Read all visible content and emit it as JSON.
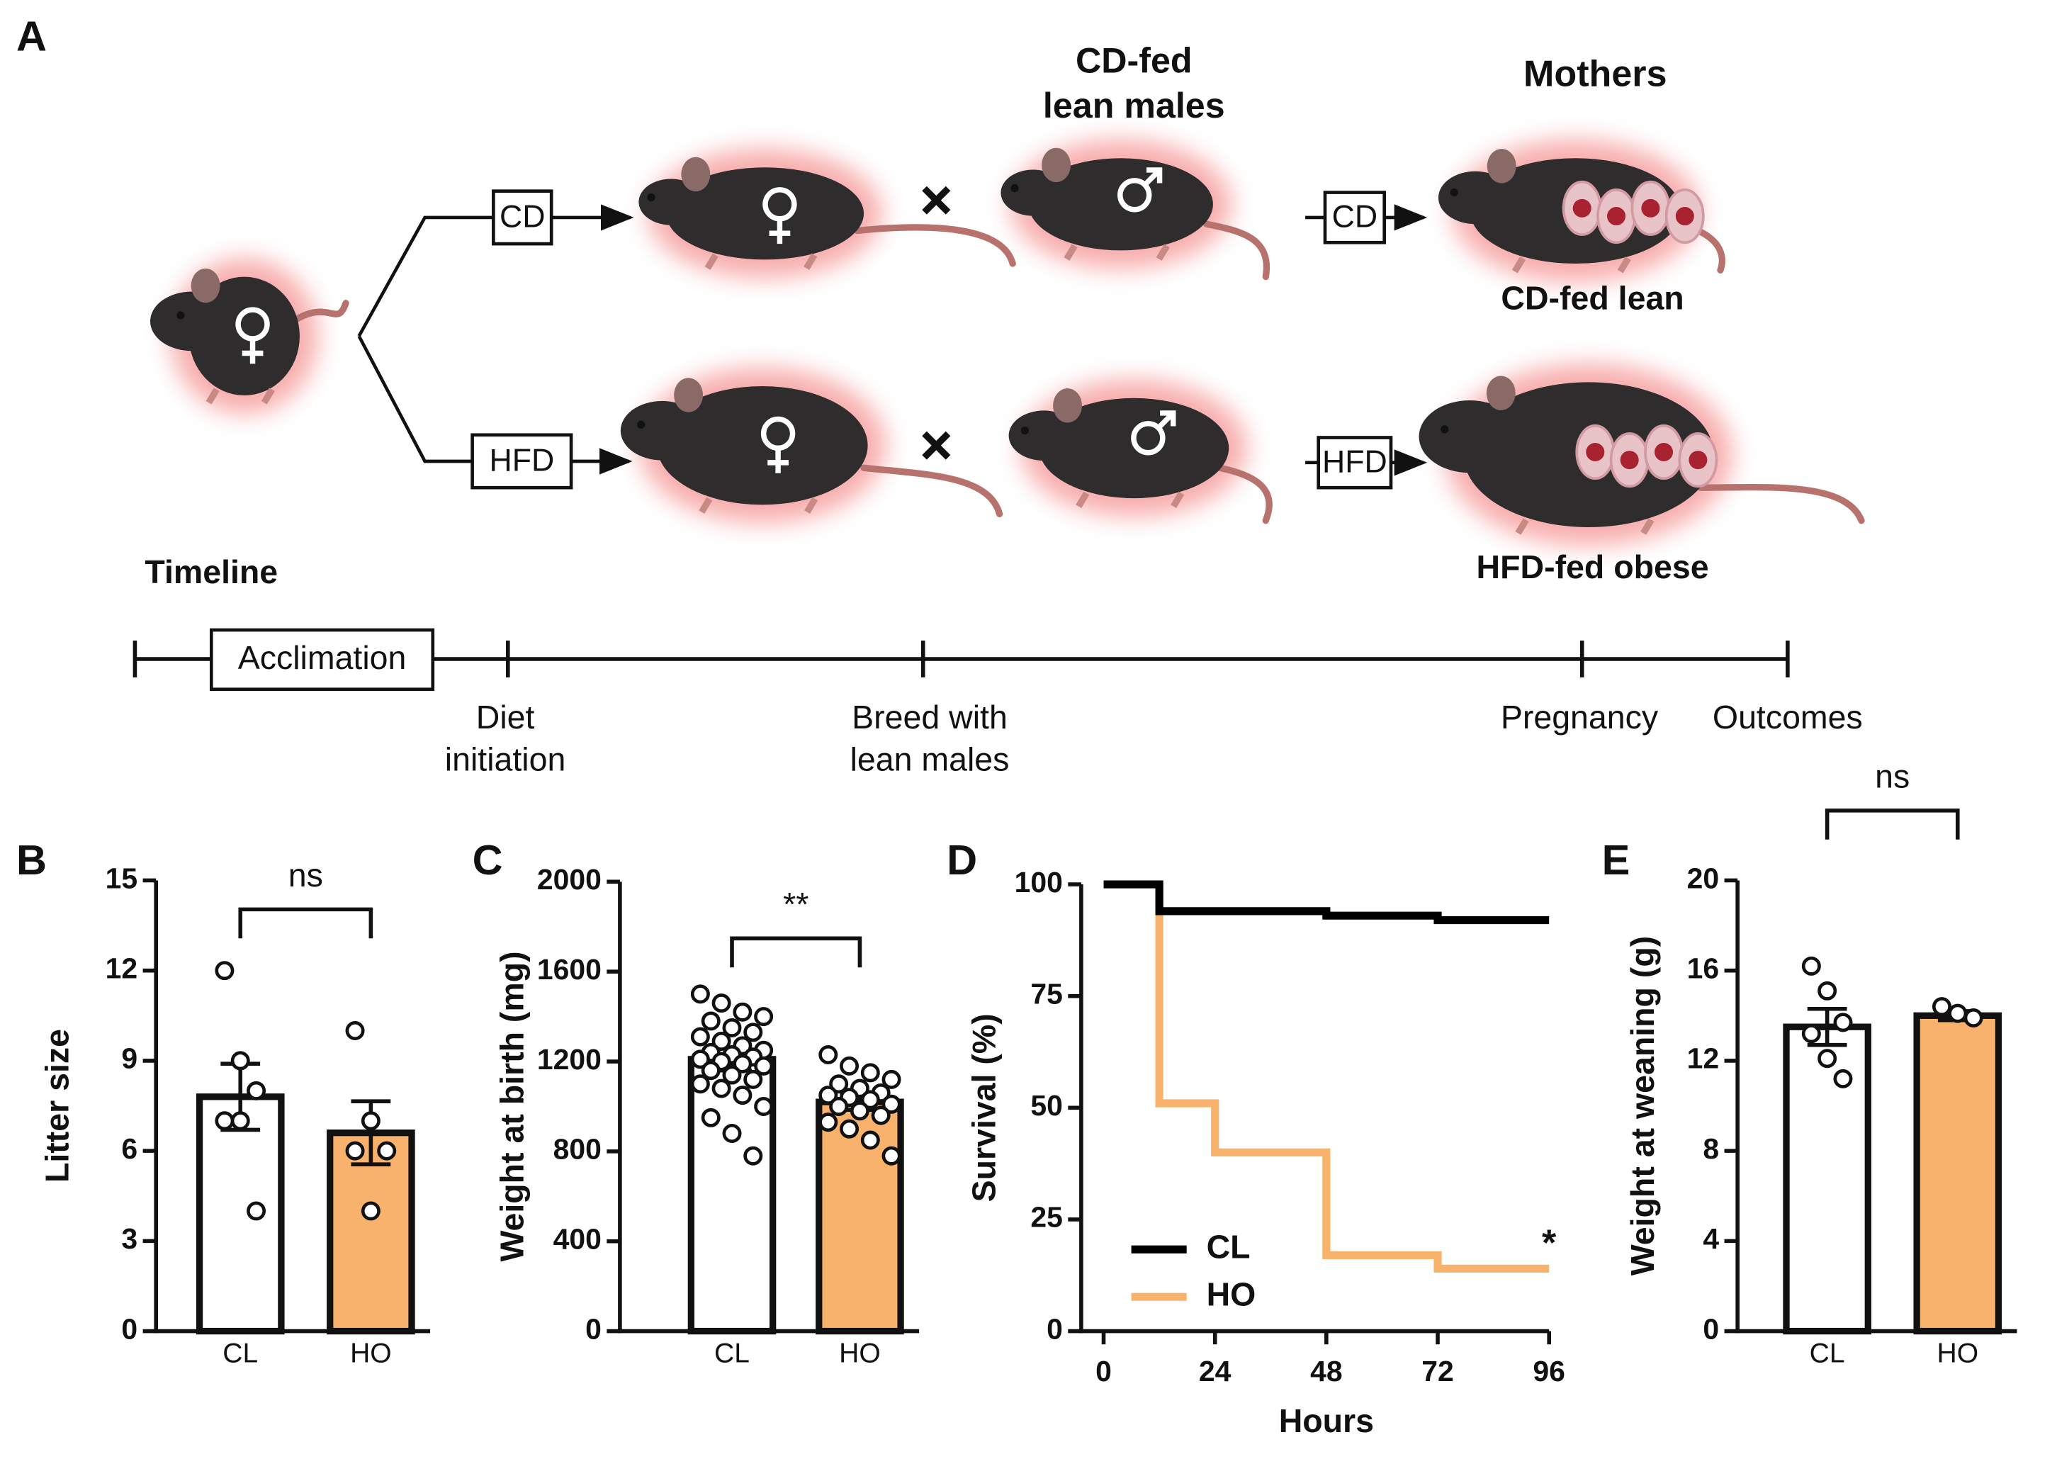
{
  "diagram": {
    "panel": "A",
    "male_label": [
      "CD-fed",
      "lean males"
    ],
    "mothers": "Mothers",
    "mother_labels": [
      "CD-fed lean",
      "HFD-fed obese"
    ],
    "diet_boxes": [
      "CD",
      "HFD"
    ],
    "mother_diet_boxes": [
      "CD",
      "HFD"
    ],
    "timeline": {
      "title": "Timeline",
      "phase": "Acclimation",
      "events": [
        [
          "Diet",
          "initiation"
        ],
        [
          "Breed with",
          "lean males"
        ],
        [
          "Pregnancy"
        ],
        [
          "Outcomes"
        ]
      ]
    }
  },
  "chart_data": [
    {
      "type": "bar",
      "panel": "B",
      "ylabel": "Litter size",
      "categories": [
        "CL",
        "HO"
      ],
      "values": [
        7.8,
        6.6
      ],
      "errors": [
        1.1,
        1.05
      ],
      "points": [
        [
          12,
          9,
          8,
          7,
          7,
          4
        ],
        [
          10,
          7,
          6,
          6,
          4
        ]
      ],
      "colors": [
        "#ffffff",
        "#f9b26b"
      ],
      "significance": "ns",
      "ylim": [
        0,
        15
      ],
      "yticks": [
        0,
        3,
        6,
        9,
        12,
        15
      ]
    },
    {
      "type": "bar",
      "panel": "C",
      "ylabel": "Weight at birth (mg)",
      "categories": [
        "CL",
        "HO"
      ],
      "values": [
        1210,
        1020
      ],
      "errors": [
        50,
        35
      ],
      "points": [
        [
          1500,
          1460,
          1420,
          1400,
          1380,
          1350,
          1330,
          1310,
          1290,
          1270,
          1250,
          1240,
          1230,
          1220,
          1210,
          1200,
          1190,
          1180,
          1160,
          1140,
          1120,
          1100,
          1080,
          1050,
          1000,
          950,
          880,
          780
        ],
        [
          1230,
          1180,
          1150,
          1120,
          1100,
          1080,
          1060,
          1050,
          1040,
          1030,
          1010,
          1000,
          980,
          960,
          930,
          900,
          850,
          780
        ]
      ],
      "colors": [
        "#ffffff",
        "#f9b26b"
      ],
      "significance": "**",
      "ylim": [
        0,
        2000
      ],
      "yticks": [
        0,
        400,
        800,
        1200,
        1600,
        2000
      ]
    },
    {
      "type": "line",
      "panel": "D",
      "xlabel": "Hours",
      "ylabel": "Survival (%)",
      "series": [
        {
          "name": "CL",
          "color": "#000000",
          "x": [
            0,
            12,
            12,
            48,
            48,
            72,
            72,
            96
          ],
          "values": [
            100,
            100,
            94,
            94,
            93,
            93,
            92,
            92
          ]
        },
        {
          "name": "HO",
          "color": "#f9b26b",
          "x": [
            0,
            12,
            12,
            24,
            24,
            48,
            48,
            72,
            72,
            96
          ],
          "values": [
            100,
            100,
            51,
            51,
            40,
            40,
            17,
            17,
            14,
            14
          ]
        }
      ],
      "annotation": "*",
      "xlim": [
        0,
        96
      ],
      "xticks": [
        0,
        24,
        48,
        72,
        96
      ],
      "ylim": [
        0,
        100
      ],
      "yticks": [
        0,
        25,
        50,
        75,
        100
      ]
    },
    {
      "type": "bar",
      "panel": "E",
      "ylabel": "Weight at weaning (g)",
      "categories": [
        "CL",
        "HO"
      ],
      "values": [
        13.5,
        14.0
      ],
      "errors": [
        0.8,
        0.2
      ],
      "points": [
        [
          16.2,
          15.1,
          13.7,
          13.2,
          12.1,
          11.2
        ],
        [
          14.4,
          14.1,
          13.9
        ]
      ],
      "colors": [
        "#ffffff",
        "#f9b26b"
      ],
      "significance": "ns",
      "ylim": [
        0,
        20
      ],
      "yticks": [
        0,
        4,
        8,
        12,
        16,
        20
      ]
    }
  ]
}
